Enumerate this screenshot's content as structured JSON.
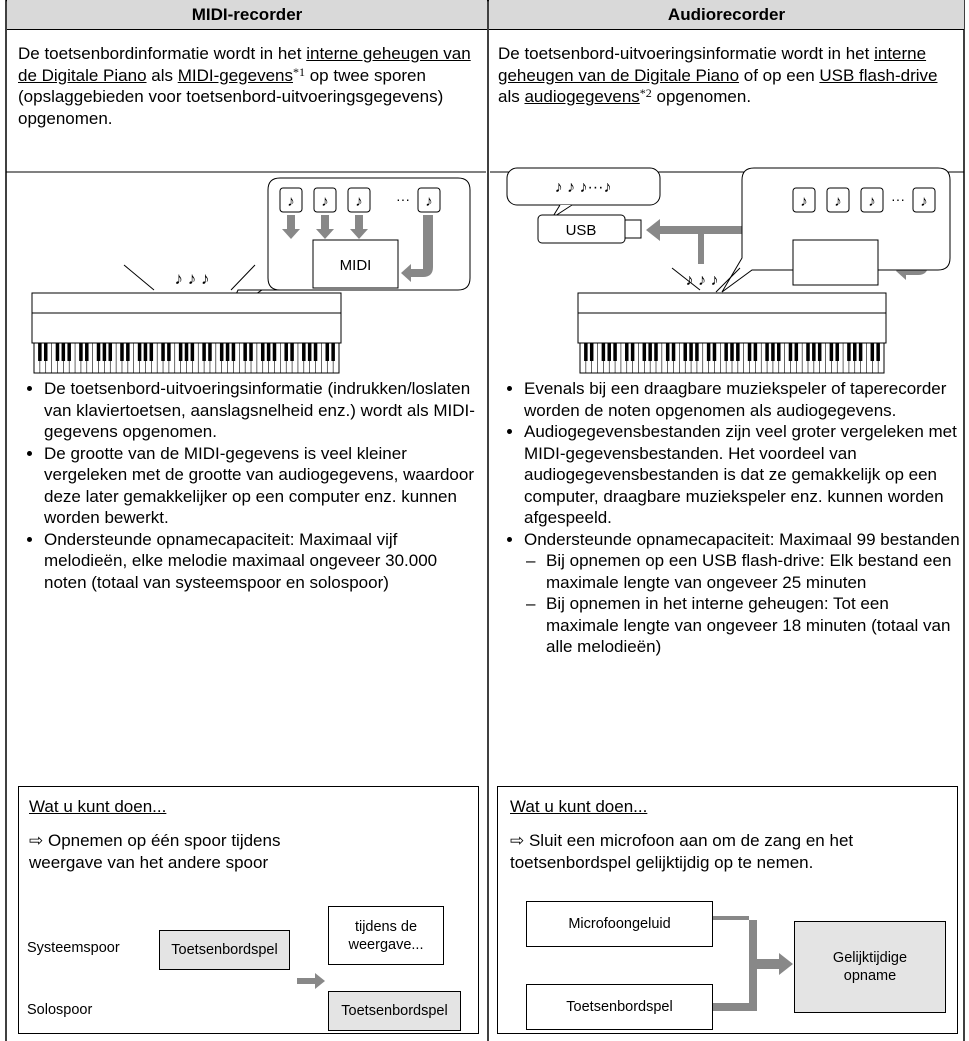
{
  "table": {
    "headers": [
      "MIDI-recorder",
      "Audiorecorder"
    ],
    "midi": {
      "intro": [
        "De toetsenbordinformatie wordt in het ",
        "interne geheugen van de Digitale Piano",
        " als ",
        "MIDI-gegevens",
        "*1",
        " op twee sporen (opslaggebieden voor toetsenbord-uitvoeringsgegevens) opgenomen."
      ],
      "illustration": {
        "melody": "♪ ♪ ♪",
        "note": "♪",
        "ellipsis": "···",
        "label": "MIDI"
      },
      "bullets": [
        "De toetsenbord-uitvoeringsinformatie (indrukken/loslaten van klaviertoetsen, aanslagsnelheid enz.) wordt als MIDI-gegevens opgenomen.",
        "De grootte van de MIDI-gegevens is veel kleiner vergeleken met de grootte van audiogegevens, waardoor deze later gemakkelijker op een computer enz. kunnen worden bewerkt.",
        "Ondersteunde opnamecapaciteit: Maximaal vijf melodieën, elke melodie maximaal ongeveer 30.000 noten (totaal van systeemspoor en solospoor)"
      ],
      "box": {
        "title": "Wat u kunt doen...",
        "item": "⇨ Opnemen op één spoor tijdens weergave van het andere spoor",
        "diagram": {
          "track1": "Systeemspoor",
          "track1_box": "Toetsenbordspel",
          "during": "tijdens de weergave...",
          "track2": "Solospoor",
          "track2_box": "Toetsenbordspel"
        }
      }
    },
    "audio": {
      "intro": [
        "De toetsenbord-uitvoeringsinformatie wordt in het ",
        "interne geheugen van de Digitale Piano",
        " of op een ",
        "USB flash-drive",
        " als ",
        "audiogegevens",
        "*2",
        " opgenomen."
      ],
      "illustration": {
        "usb_melody": "♪ ♪ ♪···♪",
        "usb": "USB",
        "melody": "♪ ♪ ♪",
        "note": "♪",
        "ellipsis": "···"
      },
      "bullets": [
        "Evenals bij een draagbare muziekspeler of taperecorder worden de noten opgenomen als audiogegevens.",
        "Audiogegevensbestanden zijn veel groter vergeleken met MIDI-gegevensbestanden. Het voordeel van audiogegevensbestanden is dat ze gemakkelijk op een computer, draagbare muziekspeler enz. kunnen worden afgespeeld.",
        "Ondersteunde opnamecapaciteit: Maximaal 99 bestanden"
      ],
      "sub_bullets": [
        "Bij opnemen op een USB flash-drive: Elk bestand een maximale lengte van ongeveer 25 minuten",
        "Bij opnemen in het interne geheugen: Tot een maximale lengte van ongeveer 18 minuten (totaal van alle melodieën)"
      ],
      "box": {
        "title": "Wat u kunt doen...",
        "item": "⇨ Sluit een microfoon aan om de zang en het toetsenbordspel gelijktijdig op te nemen.",
        "diagram": {
          "input1": "Microfoongeluid",
          "input2": "Toetsenbordspel",
          "output": "Gelijktijdige opname"
        }
      }
    }
  }
}
